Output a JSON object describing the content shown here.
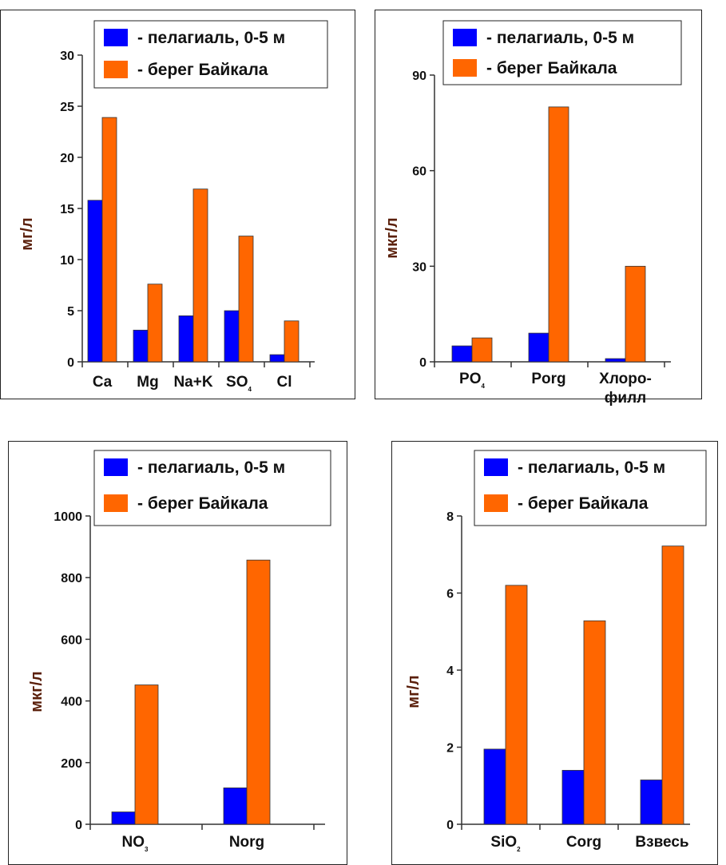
{
  "chart_data": [
    {
      "type": "bar",
      "ylabel": "мг/л",
      "ylim": [
        0,
        30
      ],
      "yticks": [
        0,
        5,
        10,
        15,
        20,
        25,
        30
      ],
      "categories": [
        [
          "Ca"
        ],
        [
          "Mg"
        ],
        [
          "Na+K"
        ],
        [
          "SO",
          "4"
        ],
        [
          "Cl"
        ]
      ],
      "series": [
        {
          "name": "- пелагиаль, 0-5 м",
          "color": "#0000ff",
          "values": [
            15.8,
            3.1,
            4.5,
            5.0,
            0.7
          ]
        },
        {
          "name": "- берег Байкала",
          "color": "#ff6600",
          "values": [
            23.9,
            7.6,
            16.9,
            12.3,
            4.0
          ]
        }
      ]
    },
    {
      "type": "bar",
      "ylabel": "мкг/л",
      "ylim": [
        0,
        90
      ],
      "yticks": [
        0,
        30,
        60,
        90
      ],
      "categories": [
        [
          "PO",
          "4"
        ],
        [
          "Porg"
        ],
        [
          "Хлоро-",
          "филл"
        ]
      ],
      "series": [
        {
          "name": "- пелагиаль, 0-5 м",
          "color": "#0000ff",
          "values": [
            5,
            9,
            1
          ]
        },
        {
          "name": "- берег Байкала",
          "color": "#ff6600",
          "values": [
            7.5,
            80,
            30
          ]
        }
      ]
    },
    {
      "type": "bar",
      "ylabel": "мкг/л",
      "ylim": [
        0,
        1000
      ],
      "yticks": [
        0,
        200,
        400,
        600,
        800,
        1000
      ],
      "categories": [
        [
          "NO",
          "3"
        ],
        [
          "Norg"
        ]
      ],
      "series": [
        {
          "name": "- пелагиаль, 0-5 м",
          "color": "#0000ff",
          "values": [
            40,
            118
          ]
        },
        {
          "name": "- берег Байкала",
          "color": "#ff6600",
          "values": [
            452,
            857
          ]
        }
      ]
    },
    {
      "type": "bar",
      "ylabel": "мг/л",
      "ylim": [
        0,
        8
      ],
      "yticks": [
        0,
        2,
        4,
        6,
        8
      ],
      "categories": [
        [
          "SiO",
          "2"
        ],
        [
          "Corg"
        ],
        [
          "Взвесь"
        ]
      ],
      "series": [
        {
          "name": "- пелагиаль, 0-5 м",
          "color": "#0000ff",
          "values": [
            1.95,
            1.4,
            1.15
          ]
        },
        {
          "name": "- берег Байкала",
          "color": "#ff6600",
          "values": [
            6.2,
            5.28,
            7.22
          ]
        }
      ]
    }
  ]
}
